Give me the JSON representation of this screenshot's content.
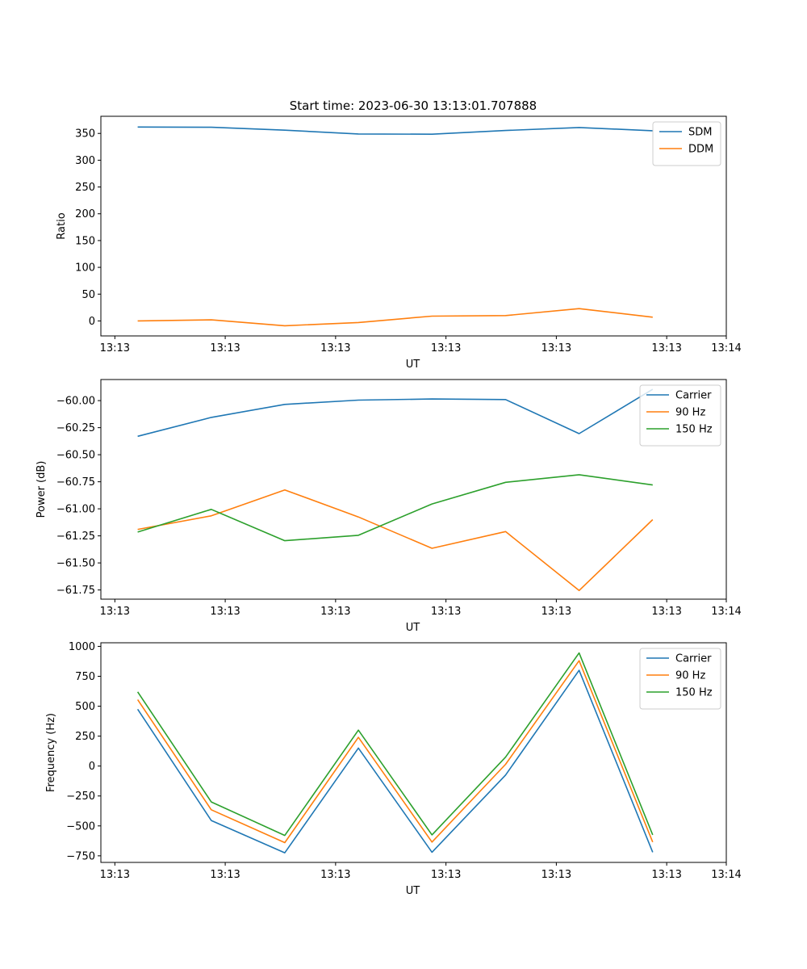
{
  "figure": {
    "title": "Start time: 2023-06-30 13:13:01.707888"
  },
  "chart_data": [
    {
      "type": "line",
      "title": "Start time: 2023-06-30 13:13:01.707888",
      "xlabel": "UT",
      "ylabel": "Ratio",
      "x": [
        1,
        2,
        3,
        4,
        5,
        6,
        7,
        8
      ],
      "xlim": [
        0.5,
        9.0
      ],
      "x_ticks": [
        0.69,
        2.19,
        3.69,
        5.19,
        6.69,
        8.19,
        9.0
      ],
      "x_tick_labels": [
        "13:13",
        "13:13",
        "13:13",
        "13:13",
        "13:13",
        "13:13",
        "13:14"
      ],
      "ylim": [
        -28,
        382
      ],
      "y_ticks": [
        0,
        50,
        100,
        150,
        200,
        250,
        300,
        350
      ],
      "y_tick_labels": [
        "0",
        "50",
        "100",
        "150",
        "200",
        "250",
        "300",
        "350"
      ],
      "series": [
        {
          "name": "SDM",
          "color": "#1f77b4",
          "values": [
            362,
            361.5,
            356,
            349,
            348.5,
            355.5,
            361,
            355
          ]
        },
        {
          "name": "DDM",
          "color": "#ff7f0e",
          "values": [
            0,
            2,
            -9,
            -3,
            9,
            10,
            23,
            7
          ]
        }
      ],
      "legend": "top-right",
      "grid": false
    },
    {
      "type": "line",
      "xlabel": "UT",
      "ylabel": "Power (dB)",
      "x": [
        1,
        2,
        3,
        4,
        5,
        6,
        7,
        8
      ],
      "xlim": [
        0.5,
        9.0
      ],
      "x_ticks": [
        0.69,
        2.19,
        3.69,
        5.19,
        6.69,
        8.19,
        9.0
      ],
      "x_tick_labels": [
        "13:13",
        "13:13",
        "13:13",
        "13:13",
        "13:13",
        "13:13",
        "13:14"
      ],
      "ylim": [
        -61.835,
        -59.805
      ],
      "y_ticks": [
        -61.75,
        -61.5,
        -61.25,
        -61.0,
        -60.75,
        -60.5,
        -60.25,
        -60.0
      ],
      "y_tick_labels": [
        "−61.75",
        "−61.50",
        "−61.25",
        "−61.00",
        "−60.75",
        "−60.50",
        "−60.25",
        "−60.00"
      ],
      "series": [
        {
          "name": "Carrier",
          "color": "#1f77b4",
          "values": [
            -60.33,
            -60.155,
            -60.035,
            -59.995,
            -59.985,
            -59.99,
            -60.305,
            -59.895
          ]
        },
        {
          "name": "90 Hz",
          "color": "#ff7f0e",
          "values": [
            -61.19,
            -61.065,
            -60.825,
            -61.075,
            -61.365,
            -61.21,
            -61.755,
            -61.1
          ]
        },
        {
          "name": "150 Hz",
          "color": "#2ca02c",
          "values": [
            -61.215,
            -61.005,
            -61.295,
            -61.245,
            -60.955,
            -60.755,
            -60.685,
            -60.78
          ]
        }
      ],
      "legend": "top-right",
      "grid": false
    },
    {
      "type": "line",
      "xlabel": "UT",
      "ylabel": "Frequency (Hz)",
      "x": [
        1,
        2,
        3,
        4,
        5,
        6,
        7,
        8
      ],
      "xlim": [
        0.5,
        9.0
      ],
      "x_ticks": [
        0.69,
        2.19,
        3.69,
        5.19,
        6.69,
        8.19,
        9.0
      ],
      "x_tick_labels": [
        "13:13",
        "13:13",
        "13:13",
        "13:13",
        "13:13",
        "13:13",
        "13:14"
      ],
      "ylim": [
        -805,
        1030
      ],
      "y_ticks": [
        -750,
        -500,
        -250,
        0,
        250,
        500,
        750,
        1000
      ],
      "y_tick_labels": [
        "−750",
        "−500",
        "−250",
        "0",
        "250",
        "500",
        "750",
        "1000"
      ],
      "series": [
        {
          "name": "Carrier",
          "color": "#1f77b4",
          "values": [
            475,
            -455,
            -725,
            150,
            -720,
            -75,
            800,
            -720
          ]
        },
        {
          "name": "90 Hz",
          "color": "#ff7f0e",
          "values": [
            555,
            -365,
            -640,
            240,
            -635,
            15,
            880,
            -635
          ]
        },
        {
          "name": "150 Hz",
          "color": "#2ca02c",
          "values": [
            620,
            -300,
            -580,
            300,
            -575,
            75,
            945,
            -575
          ]
        }
      ],
      "legend": "top-right",
      "grid": false
    }
  ]
}
